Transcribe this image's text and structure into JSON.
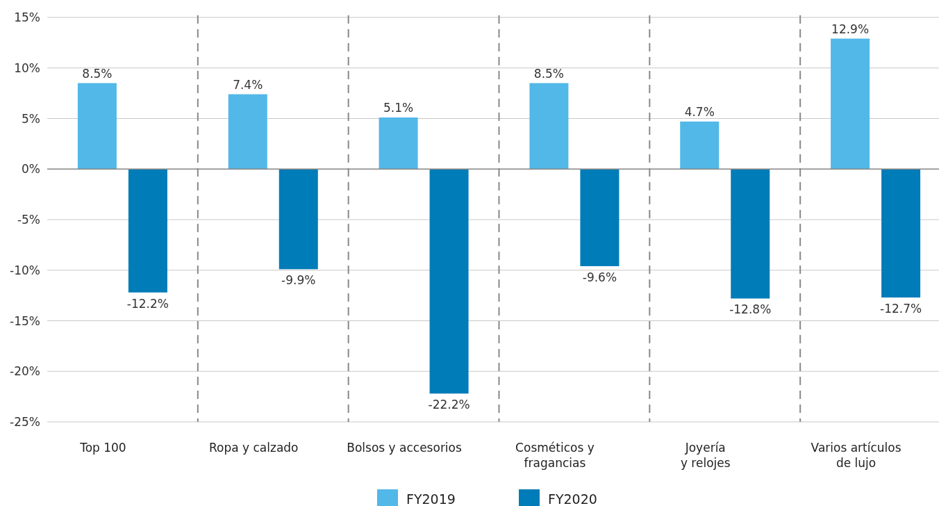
{
  "chart_data": {
    "type": "bar",
    "categories": [
      "Top 100",
      "Ropa y calzado",
      "Bolsos y accesorios",
      "Cosméticos y\nfragancias",
      "Joyería\ny relojes",
      "Varios artículos\nde lujo"
    ],
    "series": [
      {
        "name": "FY2019",
        "color": "#52b8e8",
        "values": [
          8.5,
          7.4,
          5.1,
          8.5,
          4.7,
          12.9
        ],
        "value_labels": [
          "8.5%",
          "7.4%",
          "5.1%",
          "8.5%",
          "4.7%",
          "12.9%"
        ]
      },
      {
        "name": "FY2020",
        "color": "#007cb8",
        "values": [
          -12.2,
          -9.9,
          -22.2,
          -9.6,
          -12.8,
          -12.7
        ],
        "value_labels": [
          "-12.2%",
          "-9.9%",
          "-22.2%",
          "-9.6%",
          "-12.8%",
          "-12.7%"
        ]
      }
    ],
    "ylim": [
      -25,
      15
    ],
    "yticks": [
      {
        "value": 15,
        "label": "15%"
      },
      {
        "value": 10,
        "label": "10%"
      },
      {
        "value": 5,
        "label": "5%"
      },
      {
        "value": 0,
        "label": "0%"
      },
      {
        "value": -5,
        "label": "-5%"
      },
      {
        "value": -10,
        "label": "-10%"
      },
      {
        "value": -15,
        "label": "-15%"
      },
      {
        "value": -20,
        "label": "-20%"
      },
      {
        "value": -25,
        "label": "-25%"
      }
    ],
    "grid": "y",
    "legend": "bottom"
  }
}
